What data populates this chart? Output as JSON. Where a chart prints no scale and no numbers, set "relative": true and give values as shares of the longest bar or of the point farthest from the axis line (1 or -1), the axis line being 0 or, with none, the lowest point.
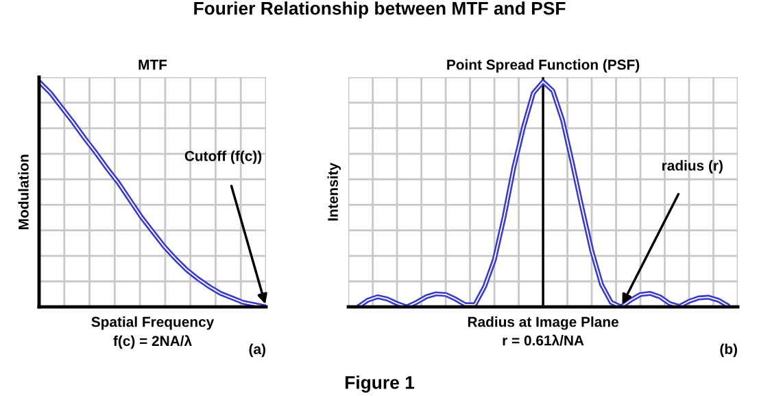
{
  "chart_data": [
    {
      "type": "line",
      "relative": true,
      "title": "MTF",
      "xlabel": "Spatial Frequency\nf(c) = 2NA/λ",
      "ylabel": "Modulation",
      "grid": true,
      "tick_labels": false,
      "categories": [
        null,
        null,
        null,
        null,
        null,
        null,
        null,
        null,
        null,
        null,
        null,
        null,
        null,
        null,
        null,
        null,
        null,
        null,
        null,
        null,
        null
      ],
      "series": [
        {
          "color": "#3a3ac8",
          "values": [
            1.0,
            0.95,
            0.885,
            0.82,
            0.75,
            0.685,
            0.615,
            0.55,
            0.475,
            0.4,
            0.335,
            0.27,
            0.215,
            0.165,
            0.125,
            0.09,
            0.06,
            0.04,
            0.02,
            0.01,
            0.0
          ]
        }
      ],
      "annotations": [
        "Fourier Relationship between MTF and PSF",
        "(a)",
        "Cutoff (f(c))"
      ]
    },
    {
      "type": "line",
      "relative": true,
      "title": "Point Spread Function (PSF)",
      "xlabel": "Radius at Image Plane\nr = 0.61λ/NA",
      "ylabel": "Intensity",
      "grid": true,
      "tick_labels": false,
      "categories": [
        null,
        null,
        null,
        null,
        null,
        null,
        null,
        null,
        null,
        null,
        null,
        null,
        null,
        null,
        null,
        null,
        null,
        null,
        null,
        null,
        null,
        null,
        null,
        null,
        null,
        null,
        null,
        null,
        null,
        null,
        null,
        null,
        null,
        null,
        null,
        null,
        null,
        null,
        null,
        null,
        null
      ],
      "series": [
        {
          "color": "#3a3ac8",
          "values": [
            null,
            0.0,
            0.03,
            0.045,
            0.035,
            0.015,
            0.0,
            0.02,
            0.045,
            0.058,
            0.055,
            0.035,
            0.01,
            0.01,
            0.09,
            0.21,
            0.4,
            0.62,
            0.8,
            0.95,
            1.0,
            0.96,
            0.83,
            0.64,
            0.44,
            0.25,
            0.1,
            0.02,
            0.0,
            0.03,
            0.055,
            0.06,
            0.045,
            0.015,
            0.002,
            0.025,
            0.04,
            0.043,
            0.03,
            0.005,
            null
          ]
        }
      ],
      "annotations": [
        "(b)",
        "Figure 1",
        "radius (r)"
      ]
    }
  ]
}
